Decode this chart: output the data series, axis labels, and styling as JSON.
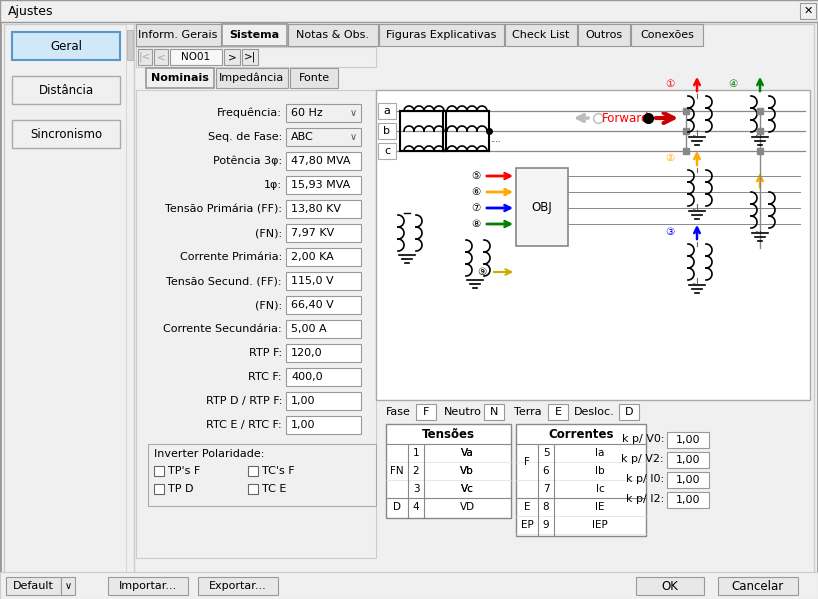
{
  "title": "Ajustes",
  "bg_color": "#f0f0f0",
  "white": "#ffffff",
  "tabs_main": [
    "Inform. Gerais",
    "Sistema",
    "Notas & Obs.",
    "Figuras Explicativas",
    "Check List",
    "Outros",
    "Conexões"
  ],
  "active_tab": "Sistema",
  "sub_tabs": [
    "Nominais",
    "Impedância",
    "Fonte"
  ],
  "active_sub_tab": "Nominais",
  "left_buttons": [
    "Geral",
    "Distância",
    "Sincronismo"
  ],
  "fields": [
    {
      "label": "Frequência:",
      "value": "60 Hz",
      "dropdown": true
    },
    {
      "label": "Seq. de Fase:",
      "value": "ABC",
      "dropdown": true
    },
    {
      "label": "Potência 3φ:",
      "value": "47,80 MVA",
      "dropdown": false
    },
    {
      "label": "1φ:",
      "value": "15,93 MVA",
      "dropdown": false
    },
    {
      "label": "Tensão Primária (FF):",
      "value": "13,80 KV",
      "dropdown": false
    },
    {
      "label": "(FN):",
      "value": "7,97 KV",
      "dropdown": false
    },
    {
      "label": "Corrente Primária:",
      "value": "2,00 KA",
      "dropdown": false
    },
    {
      "label": "Tensão Secund. (FF):",
      "value": "115,0 V",
      "dropdown": false
    },
    {
      "label": "(FN):",
      "value": "66,40 V",
      "dropdown": false
    },
    {
      "label": "Corrente Secundária:",
      "value": "5,00 A",
      "dropdown": false
    },
    {
      "label": "RTP F:",
      "value": "120,0",
      "dropdown": false
    },
    {
      "label": "RTC F:",
      "value": "400,0",
      "dropdown": false
    },
    {
      "label": "RTP D / RTP F:",
      "value": "1,00",
      "dropdown": false
    },
    {
      "label": "RTC E / RTC F:",
      "value": "1,00",
      "dropdown": false
    }
  ],
  "kp_labels": [
    "k p/ V0:",
    "k p/ V2:",
    "k p/ I0:",
    "k p/ I2:"
  ],
  "kp_values": [
    "1,00",
    "1,00",
    "1,00",
    "1,00"
  ]
}
